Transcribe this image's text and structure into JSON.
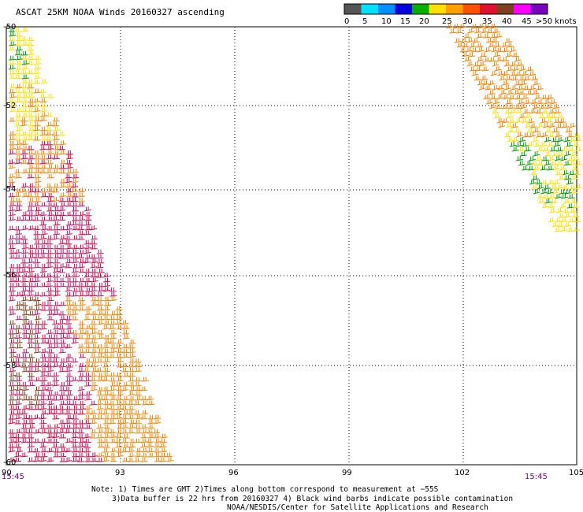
{
  "title": "ASCAT 25KM NOAA Winds 20160327 ascending",
  "legend": {
    "ticks": [
      "0",
      "5",
      "10",
      "15",
      "20",
      "25",
      "30",
      "35",
      "40",
      "45",
      ">50 knots"
    ],
    "colors": [
      "#555555",
      "#00e0ff",
      "#0090ff",
      "#0000e0",
      "#00b000",
      "#ffe000",
      "#ffa000",
      "#ff5000",
      "#e01030",
      "#804020",
      "#ff00ff",
      "#7a00c0"
    ]
  },
  "axes": {
    "lon_labels": [
      "90",
      "93",
      "96",
      "99",
      "102",
      "105"
    ],
    "lat_labels": [
      "-50",
      "-52",
      "-54",
      "-56",
      "-58",
      "-60"
    ]
  },
  "times": {
    "left": "15:45",
    "right": "15:45",
    "color": "#800080"
  },
  "notes": {
    "line1": "Note: 1) Times are GMT 2)Times along bottom correspond to measurement at −55S",
    "line2": "3)Data buffer is 22 hrs from 20160327 4) Black wind barbs indicate possible contamination",
    "line3": "NOAA/NESDIS/Center for Satellite Applications and Research"
  },
  "swaths": {
    "left": {
      "colors": [
        "#e00040",
        "#ff8000",
        "#ffe000",
        "#d01060",
        "#804020",
        "#00a000"
      ]
    },
    "right": {
      "colors": [
        "#ff8000",
        "#ffe000",
        "#00a000"
      ]
    }
  }
}
